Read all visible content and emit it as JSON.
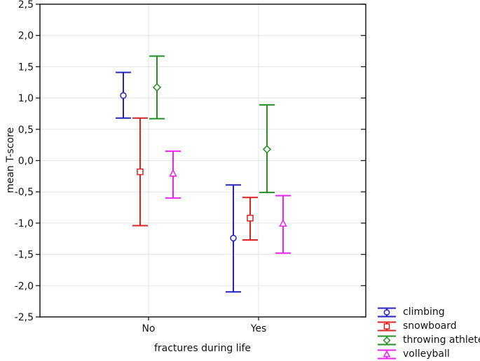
{
  "chart_data": {
    "type": "errorbar",
    "title": "",
    "xlabel": "fractures during life",
    "ylabel": "mean T-score",
    "categories": [
      "No",
      "Yes"
    ],
    "ylim": [
      -2.5,
      2.5
    ],
    "ytick_values": [
      2.5,
      2.0,
      1.5,
      1.0,
      0.5,
      0.0,
      -0.5,
      -1.0,
      -1.5,
      -2.0,
      -2.5
    ],
    "ytick_labels": [
      "2,5",
      "2,0",
      "1,5",
      "1,0",
      "0,5",
      "0,0",
      "-0,5",
      "-1,0",
      "-1,5",
      "-2,0",
      "-2,5"
    ],
    "grid": true,
    "legend_position": "bottom-right-outside",
    "series": [
      {
        "name": "climbing",
        "marker": "circle",
        "color": "#2222C2",
        "means": [
          1.04,
          -1.24
        ],
        "ci_low": [
          0.68,
          -2.1
        ],
        "ci_high": [
          1.41,
          -0.39
        ]
      },
      {
        "name": "snowboard",
        "marker": "square",
        "color": "#DE2020",
        "means": [
          -0.18,
          -0.92
        ],
        "ci_low": [
          -1.04,
          -1.27
        ],
        "ci_high": [
          0.68,
          -0.59
        ]
      },
      {
        "name": "throwing athletes",
        "marker": "diamond",
        "color": "#229022",
        "means": [
          1.17,
          0.18
        ],
        "ci_low": [
          0.67,
          -0.51
        ],
        "ci_high": [
          1.67,
          0.89
        ]
      },
      {
        "name": "volleyball",
        "marker": "triangle",
        "color": "#EE22EE",
        "means": [
          -0.21,
          -1.01
        ],
        "ci_low": [
          -0.6,
          -1.48
        ],
        "ci_high": [
          0.15,
          -0.56
        ]
      }
    ],
    "colors": {
      "grid": "#e3e3e3",
      "frame": "#1a1a1a",
      "background": "#ffffff",
      "text": "#111111"
    }
  }
}
